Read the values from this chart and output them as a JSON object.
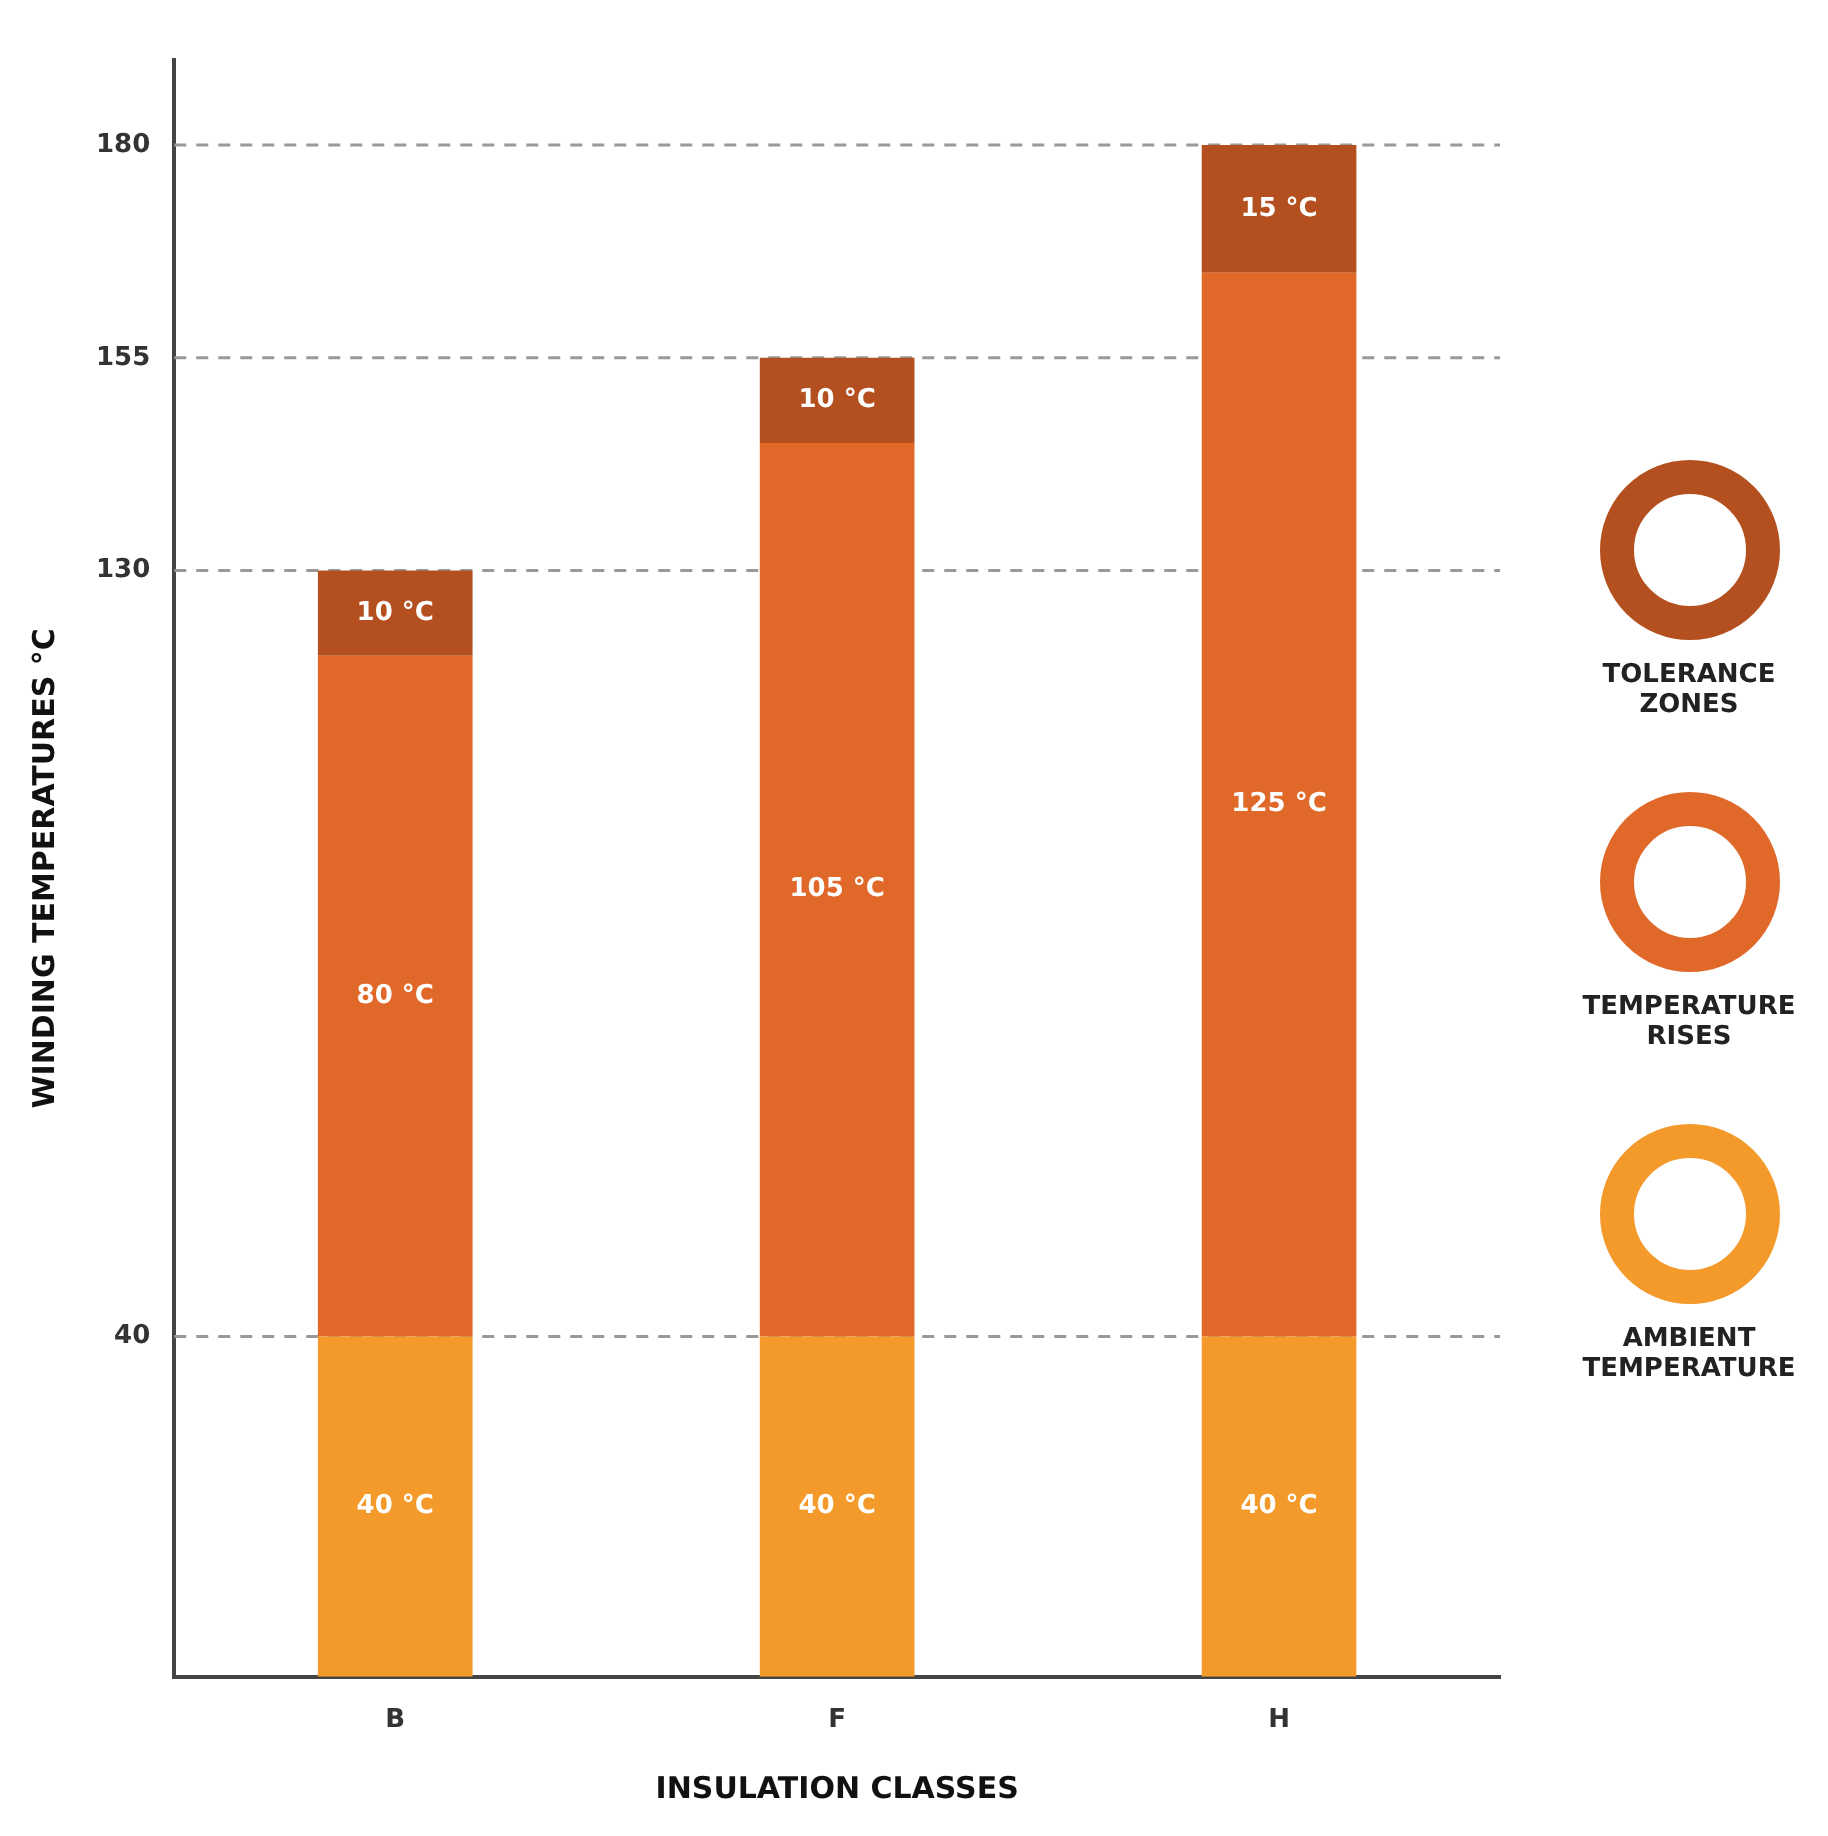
{
  "chart_data": {
    "type": "bar",
    "stacked": true,
    "xlabel": "INSULATION CLASSES",
    "ylabel": "WINDING TEMPERATURES °C",
    "categories": [
      "B",
      "F",
      "H"
    ],
    "series": [
      {
        "name": "AMBIENT TEMPERATURE",
        "color": "#f39a2b",
        "values": [
          40,
          40,
          40
        ],
        "value_labels": [
          "40 °C",
          "40 °C",
          "40 °C"
        ]
      },
      {
        "name": "TEMPERATURE RISES",
        "color": "#e0692a",
        "values": [
          80,
          105,
          125
        ],
        "value_labels": [
          "80 °C",
          "105 °C",
          "125 °C"
        ]
      },
      {
        "name": "TOLERANCE ZONES",
        "color": "#b4501f",
        "values": [
          10,
          10,
          15
        ],
        "value_labels": [
          "10 °C",
          "10 °C",
          "15 °C"
        ]
      }
    ],
    "ylim": [
      0,
      190
    ],
    "yticks": [
      40,
      130,
      155,
      180
    ],
    "grid": false,
    "legend": "right",
    "ref_lines": [
      {
        "axis": "y",
        "value": 40,
        "color": "#999999",
        "line_style": "dashed"
      },
      {
        "axis": "y",
        "value": 130,
        "color": "#999999",
        "line_style": "dashed"
      },
      {
        "axis": "y",
        "value": 155,
        "color": "#999999",
        "line_style": "dashed"
      },
      {
        "axis": "y",
        "value": 180,
        "color": "#999999",
        "line_style": "dashed"
      }
    ]
  }
}
